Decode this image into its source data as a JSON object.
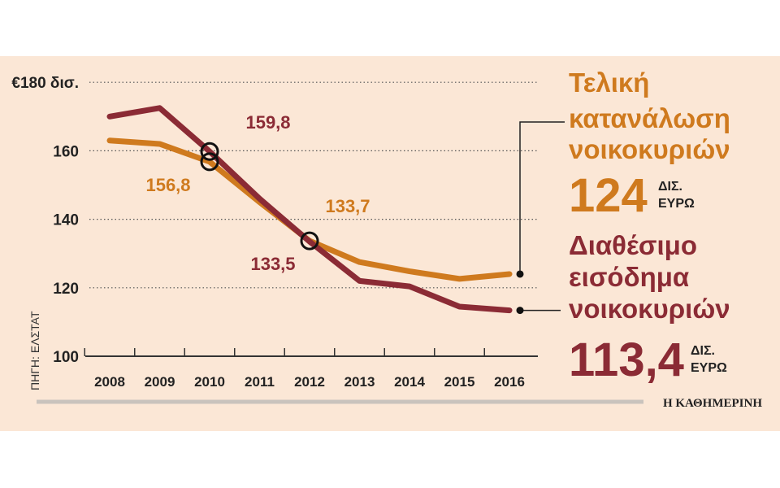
{
  "chart_data": {
    "type": "line",
    "x": [
      "2008",
      "2009",
      "2010",
      "2011",
      "2012",
      "2013",
      "2014",
      "2015",
      "2016"
    ],
    "ylim": [
      100,
      180
    ],
    "yticks": [
      {
        "value": 100,
        "label": "100"
      },
      {
        "value": 120,
        "label": "120"
      },
      {
        "value": 140,
        "label": "140"
      },
      {
        "value": 160,
        "label": "160"
      },
      {
        "value": 180,
        "label": "€180 δισ."
      }
    ],
    "grid": "dotted horizontal",
    "series": [
      {
        "name_lines": [
          "Τελική",
          "κατανάλωση",
          "νοικοκυριών"
        ],
        "final_value": "124",
        "unit_lines": [
          "ΔΙΣ.",
          "ΕΥΡΩ"
        ],
        "color": "#cf7a1e",
        "values": [
          163,
          162,
          156.8,
          145,
          133.7,
          127.5,
          124.8,
          122.6,
          124
        ]
      },
      {
        "name_lines": [
          "Διαθέσιμο",
          "εισόδημα",
          "νοικοκυριών"
        ],
        "final_value": "113,4",
        "unit_lines": [
          "ΔΙΣ.",
          "ΕΥΡΩ"
        ],
        "color": "#8b2b35",
        "values": [
          170,
          172.5,
          159.8,
          146,
          133.5,
          122,
          120.4,
          114.5,
          113.4
        ]
      }
    ],
    "annotations": [
      {
        "text": "159,8",
        "color": "#8b2b35"
      },
      {
        "text": "156,8",
        "color": "#cf7a1e"
      },
      {
        "text": "133,7",
        "color": "#cf7a1e"
      },
      {
        "text": "133,5",
        "color": "#8b2b35"
      }
    ]
  },
  "source": "ΠΗΓΗ: ΕΛΣΤΑΤ",
  "brand": "Η ΚΑΘΗΜΕΡΙΝΗ"
}
